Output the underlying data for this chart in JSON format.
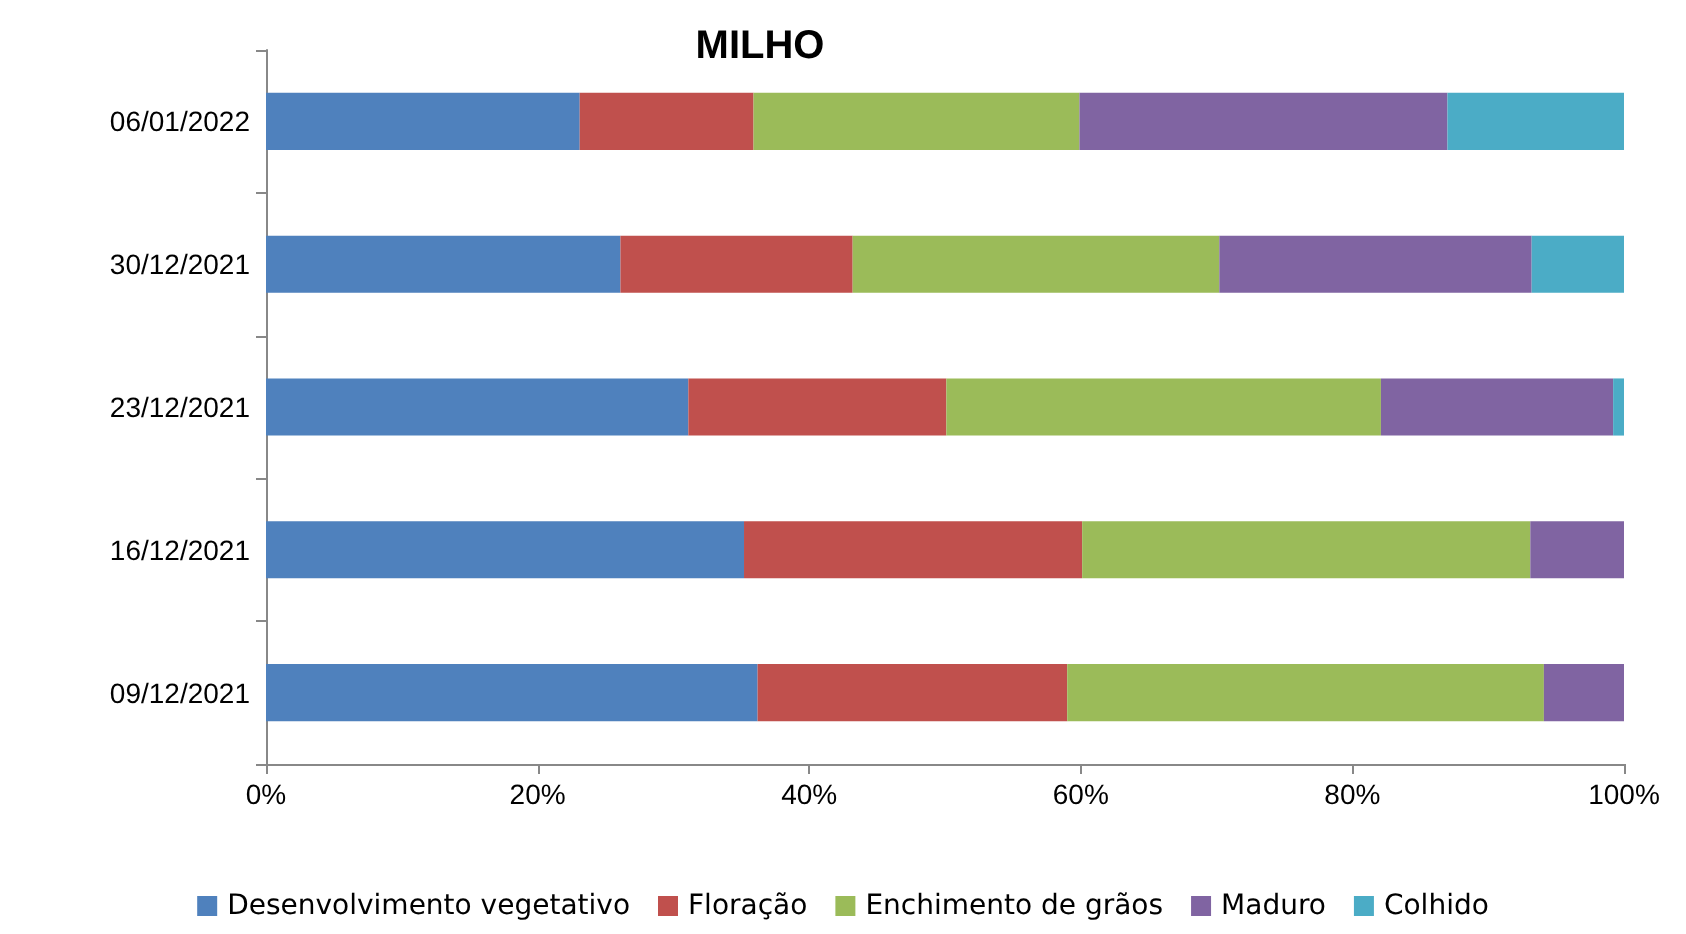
{
  "chart_data": {
    "type": "bar",
    "title": "MILHO",
    "orientation": "horizontal",
    "stacked": true,
    "categories": [
      "06/01/2022",
      "30/12/2021",
      "23/12/2021",
      "16/12/2021",
      "09/12/2021"
    ],
    "series": [
      {
        "name": "Desenvolvimento vegetativo",
        "color": "#4f81bd",
        "values": [
          23.1,
          26.1,
          31.1,
          35.2,
          36.2
        ]
      },
      {
        "name": "Floração",
        "color": "#c0504d",
        "values": [
          12.8,
          17.1,
          19.0,
          24.9,
          22.8
        ]
      },
      {
        "name": "Enchimento de grãos",
        "color": "#9bbb59",
        "values": [
          24.0,
          27.0,
          32.0,
          33.0,
          35.1
        ]
      },
      {
        "name": "Maduro",
        "color": "#8064a2",
        "values": [
          27.1,
          23.0,
          17.1,
          6.9,
          5.9
        ]
      },
      {
        "name": "Colhido",
        "color": "#4bacc6",
        "values": [
          13.0,
          6.8,
          0.8,
          0,
          0
        ]
      }
    ],
    "xlim": [
      0,
      100
    ],
    "xticks": [
      {
        "value": 0,
        "label": "0%"
      },
      {
        "value": 20,
        "label": "20%"
      },
      {
        "value": 40,
        "label": "40%"
      },
      {
        "value": 60,
        "label": "60%"
      },
      {
        "value": 80,
        "label": "80%"
      },
      {
        "value": 100,
        "label": "100%"
      }
    ],
    "grid": false,
    "legend": "bottom"
  }
}
